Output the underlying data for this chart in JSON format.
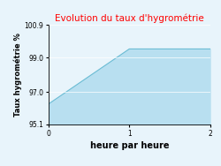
{
  "title": "Evolution du taux d'hygrométrie",
  "title_color": "#ff0000",
  "xlabel": "heure par heure",
  "ylabel": "Taux hygrométrie %",
  "x": [
    0,
    1,
    2
  ],
  "y": [
    96.3,
    99.5,
    99.5
  ],
  "ylim": [
    95.1,
    100.9
  ],
  "xlim": [
    0,
    2
  ],
  "yticks": [
    95.1,
    97.0,
    99.0,
    100.9
  ],
  "xticks": [
    0,
    1,
    2
  ],
  "fill_color": "#b8dff0",
  "fill_alpha": 1.0,
  "line_color": "#6bbcd4",
  "line_width": 0.8,
  "bg_color": "#e8f4fb",
  "fig_bg_color": "#e8f4fb",
  "title_fontsize": 7.5,
  "xlabel_fontsize": 7,
  "ylabel_fontsize": 6,
  "tick_fontsize": 5.5
}
